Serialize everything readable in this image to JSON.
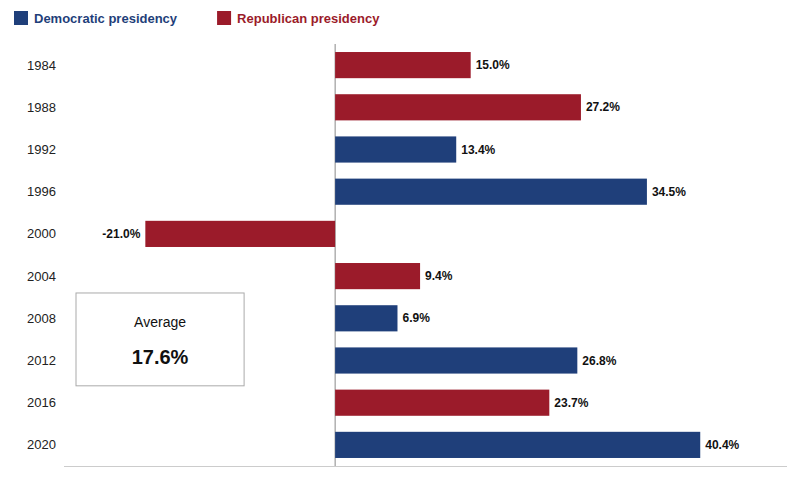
{
  "chart_data": {
    "type": "bar",
    "orientation": "horizontal",
    "categories": [
      "1984",
      "1988",
      "1992",
      "1996",
      "2000",
      "2004",
      "2008",
      "2012",
      "2016",
      "2020"
    ],
    "series": [
      {
        "name": "Democratic presidency",
        "color": "#1F3F7A",
        "values": [
          null,
          null,
          13.4,
          34.5,
          null,
          null,
          6.9,
          26.8,
          null,
          40.4
        ],
        "value_labels": [
          null,
          null,
          "13.4%",
          "34.5%",
          null,
          null,
          "6.9%",
          "26.8%",
          null,
          "40.4%"
        ]
      },
      {
        "name": "Republican presidency",
        "color": "#9B1B2A",
        "values": [
          15.0,
          27.2,
          null,
          null,
          -21.0,
          9.4,
          null,
          null,
          23.7,
          null
        ],
        "value_labels": [
          "15.0%",
          "27.2%",
          null,
          null,
          "-21.0%",
          "9.4%",
          null,
          null,
          "23.7%",
          null
        ]
      }
    ],
    "xlim": [
      -30,
      50
    ],
    "tick_labels": "y",
    "data_labels": true,
    "legend": "top-left",
    "grid": false,
    "annotations": [
      {
        "text": "Average"
      },
      {
        "text": "17.6%"
      }
    ]
  }
}
